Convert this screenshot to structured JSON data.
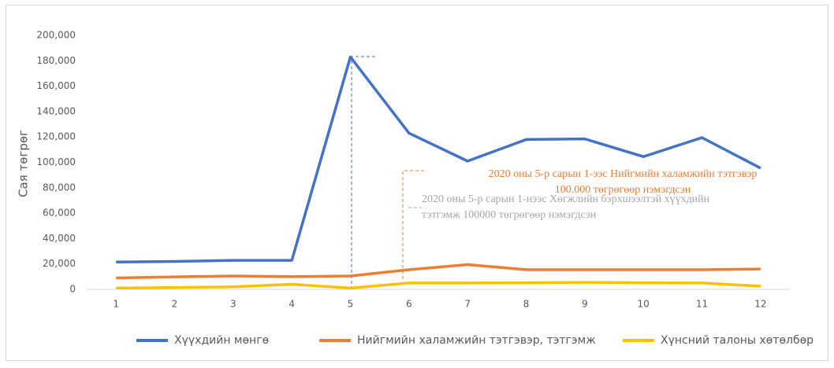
{
  "chart_data": {
    "type": "line",
    "y_label": "Сая төгрөг",
    "categories": [
      "1",
      "2",
      "3",
      "4",
      "5",
      "6",
      "7",
      "8",
      "9",
      "10",
      "11",
      "12"
    ],
    "series": [
      {
        "name": "Хүүхдийн мөнгө",
        "color": "#4472c4",
        "values": [
          21500,
          22000,
          22800,
          22800,
          183000,
          123000,
          101000,
          118000,
          118500,
          104500,
          119500,
          95500
        ]
      },
      {
        "name": "Нийгмийн халамжийн тэтгэвэр, тэтгэмж",
        "color": "#ed7d31",
        "values": [
          9000,
          9800,
          10500,
          10000,
          10500,
          15500,
          19500,
          15500,
          15500,
          15500,
          15500,
          16000
        ]
      },
      {
        "name": "Хүнсний талоны хөтөлбөр",
        "color": "#ffc000",
        "values": [
          1000,
          1500,
          2000,
          4000,
          1000,
          5000,
          5000,
          5200,
          5500,
          5200,
          5000,
          2500
        ]
      }
    ],
    "ylim": [
      0,
      200000
    ],
    "yticks": [
      0,
      {
        "value": 20000,
        "label": "20,000"
      },
      {
        "value": 40000,
        "label": "40,000"
      },
      {
        "value": 60000,
        "label": "60,000"
      },
      {
        "value": 80000,
        "label": "80,000"
      },
      {
        "value": 100000,
        "label": "100,000"
      },
      {
        "value": 120000,
        "label": "120,000"
      },
      {
        "value": 140000,
        "label": "140,000"
      },
      {
        "value": 160000,
        "label": "160,000"
      },
      {
        "value": 180000,
        "label": "180,000"
      },
      {
        "value": 200000,
        "label": "200,000"
      }
    ],
    "legend": "bottom",
    "annotations": [
      {
        "color": "#ed7d31",
        "lines": [
          "2020 оны 5-р сарын 1-ээс Нийгмийн халамжийн тэтгэвэр",
          "100.000 төгрөгөөр нэмэгдсэн"
        ]
      },
      {
        "color": "#a5a5a5",
        "lines": [
          "2020 оны 5-р сарын 1-нээс Хөгжлийн бэрхшээлтэй хүүхдийн",
          "тэтгэмж 100000 төгрөгөөр нэмэгдсэн"
        ]
      }
    ]
  }
}
